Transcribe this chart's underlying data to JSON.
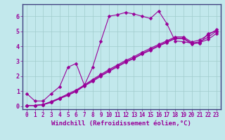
{
  "xlabel": "Windchill (Refroidissement éolien,°C)",
  "xlim": [
    -0.5,
    23.5
  ],
  "ylim": [
    -0.2,
    6.8
  ],
  "yticks": [
    0,
    1,
    2,
    3,
    4,
    5,
    6
  ],
  "xticks": [
    0,
    1,
    2,
    3,
    4,
    5,
    6,
    7,
    8,
    9,
    10,
    11,
    12,
    13,
    14,
    15,
    16,
    17,
    18,
    19,
    20,
    21,
    22,
    23
  ],
  "bg_color": "#c2e8ec",
  "line_color": "#990099",
  "grid_color": "#a0cccc",
  "border_color": "#404080",
  "line1_x": [
    0,
    1,
    2,
    3,
    4,
    5,
    6,
    7,
    8,
    9,
    10,
    11,
    12,
    13,
    14,
    15,
    16,
    17,
    18,
    19,
    20,
    21,
    22,
    23
  ],
  "line1_y": [
    0.85,
    0.35,
    0.35,
    0.85,
    1.3,
    2.6,
    2.85,
    1.4,
    2.6,
    4.35,
    6.0,
    6.1,
    6.25,
    6.15,
    6.0,
    5.85,
    6.35,
    5.5,
    4.35,
    4.3,
    4.2,
    4.2,
    4.85,
    5.0
  ],
  "line2_x": [
    0,
    1,
    2,
    3,
    4,
    5,
    6,
    7,
    8,
    9,
    10,
    11,
    12,
    13,
    14,
    15,
    16,
    17,
    18,
    19,
    20,
    21,
    22,
    23
  ],
  "line2_y": [
    0.05,
    0.05,
    0.1,
    0.25,
    0.5,
    0.72,
    0.98,
    1.35,
    1.65,
    2.0,
    2.32,
    2.62,
    2.92,
    3.18,
    3.47,
    3.72,
    4.0,
    4.25,
    4.5,
    4.5,
    4.15,
    4.25,
    4.45,
    4.85
  ],
  "line3_x": [
    0,
    1,
    2,
    3,
    4,
    5,
    6,
    7,
    8,
    9,
    10,
    11,
    12,
    13,
    14,
    15,
    16,
    17,
    18,
    19,
    20,
    21,
    22,
    23
  ],
  "line3_y": [
    0.05,
    0.05,
    0.1,
    0.28,
    0.52,
    0.76,
    1.02,
    1.38,
    1.72,
    2.05,
    2.38,
    2.68,
    2.98,
    3.22,
    3.52,
    3.78,
    4.05,
    4.3,
    4.55,
    4.55,
    4.2,
    4.3,
    4.6,
    5.0
  ],
  "line4_x": [
    0,
    1,
    2,
    3,
    4,
    5,
    6,
    7,
    8,
    9,
    10,
    11,
    12,
    13,
    14,
    15,
    16,
    17,
    18,
    19,
    20,
    21,
    22,
    23
  ],
  "line4_y": [
    0.05,
    0.05,
    0.12,
    0.32,
    0.55,
    0.82,
    1.08,
    1.42,
    1.78,
    2.12,
    2.45,
    2.75,
    3.05,
    3.3,
    3.6,
    3.86,
    4.12,
    4.36,
    4.62,
    4.62,
    4.28,
    4.42,
    4.75,
    5.1
  ],
  "marker": "D",
  "markersize": 2.5,
  "linewidth": 0.8,
  "xlabel_fontsize": 6.5,
  "tick_fontsize": 5.5
}
